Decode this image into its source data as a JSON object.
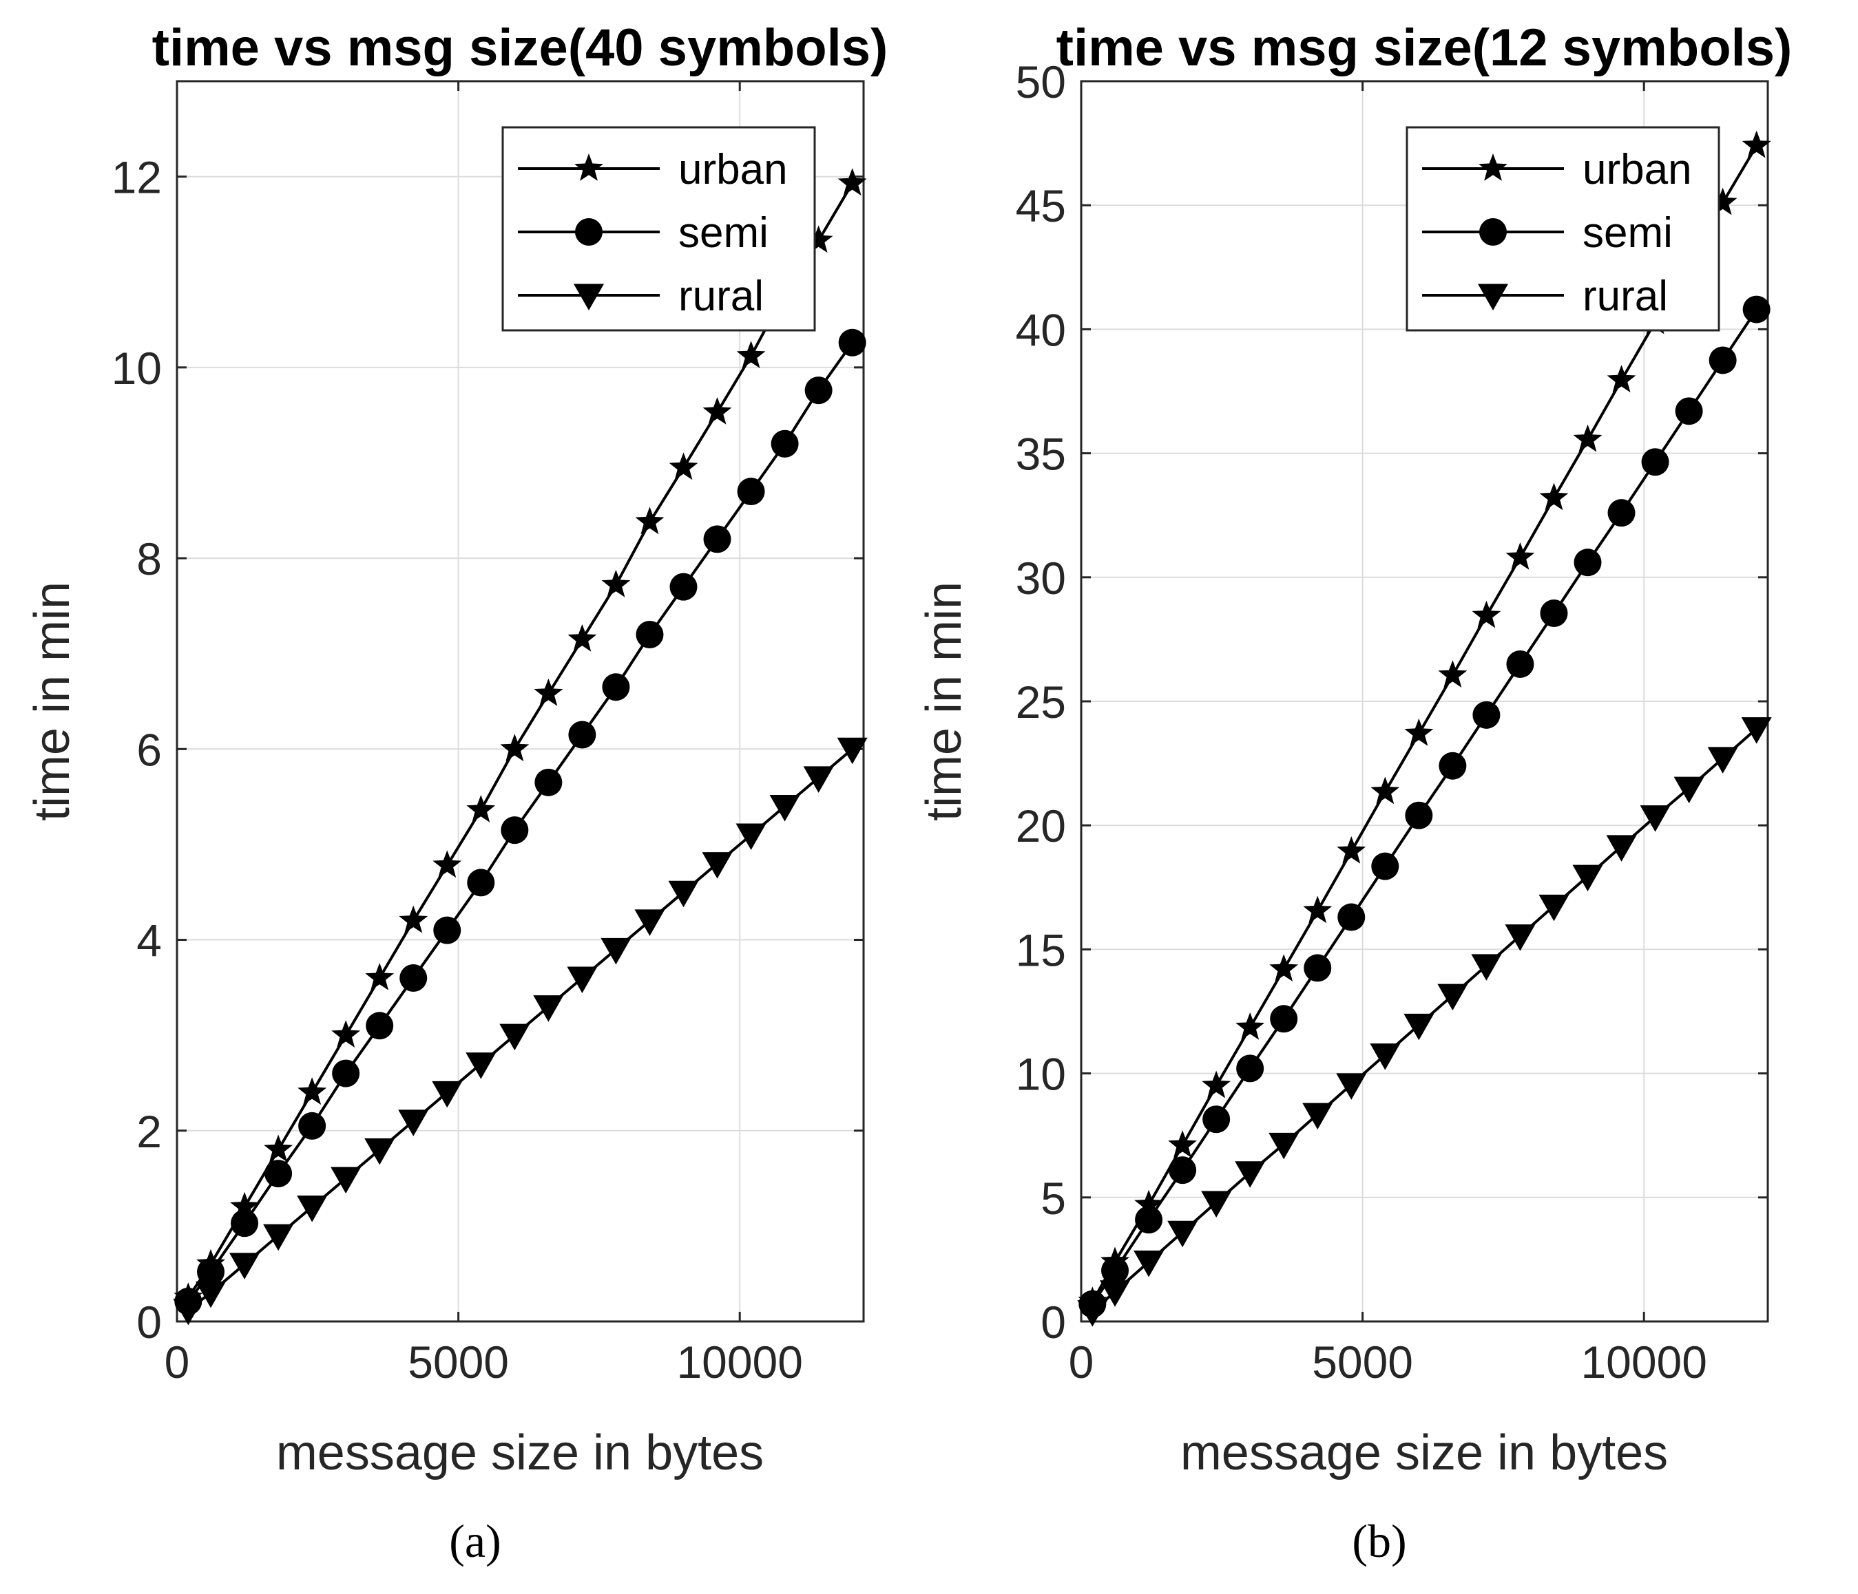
{
  "chart_data": [
    {
      "type": "line",
      "title": "time vs msg size(40 symbols)",
      "xlabel": "message size in bytes",
      "ylabel": "time in min",
      "xlim": [
        0,
        12200
      ],
      "ylim": [
        0,
        13
      ],
      "xticks": [
        0,
        5000,
        10000
      ],
      "yticks": [
        0,
        2,
        4,
        6,
        8,
        10,
        12
      ],
      "grid": true,
      "legend": "top-right",
      "caption": "(a)",
      "x": [
        200,
        600,
        1200,
        1800,
        2400,
        3000,
        3600,
        4200,
        4800,
        5400,
        6000,
        6600,
        7200,
        7800,
        8400,
        9000,
        9600,
        10200,
        10800,
        11400,
        12000
      ],
      "series": [
        {
          "name": "urban",
          "marker": "star",
          "values": [
            0.25,
            0.6,
            1.2,
            1.8,
            2.4,
            3.0,
            3.6,
            4.2,
            4.78,
            5.36,
            6.0,
            6.58,
            7.15,
            7.72,
            8.38,
            8.95,
            9.53,
            10.12,
            10.78,
            11.33,
            11.93
          ]
        },
        {
          "name": "semi",
          "marker": "circle",
          "values": [
            0.21,
            0.52,
            1.03,
            1.55,
            2.05,
            2.6,
            3.1,
            3.6,
            4.1,
            4.6,
            5.15,
            5.65,
            6.15,
            6.65,
            7.2,
            7.7,
            8.2,
            8.7,
            9.2,
            9.76,
            10.26
          ]
        },
        {
          "name": "rural",
          "marker": "triangle",
          "values": [
            0.12,
            0.3,
            0.6,
            0.9,
            1.2,
            1.5,
            1.8,
            2.1,
            2.4,
            2.7,
            3.0,
            3.3,
            3.6,
            3.9,
            4.2,
            4.5,
            4.8,
            5.1,
            5.4,
            5.7,
            6.0
          ]
        }
      ]
    },
    {
      "type": "line",
      "title": "time vs msg size(12 symbols)",
      "xlabel": "message size in bytes",
      "ylabel": "time in min",
      "xlim": [
        0,
        12200
      ],
      "ylim": [
        0,
        50
      ],
      "xticks": [
        0,
        5000,
        10000
      ],
      "yticks": [
        0,
        5,
        10,
        15,
        20,
        25,
        30,
        35,
        40,
        45,
        50
      ],
      "grid": true,
      "legend": "top-right",
      "caption": "(b)",
      "x": [
        200,
        600,
        1200,
        1800,
        2400,
        3000,
        3600,
        4200,
        4800,
        5400,
        6000,
        6600,
        7200,
        7800,
        8400,
        9000,
        9600,
        10200,
        10800,
        11400,
        12000
      ],
      "series": [
        {
          "name": "urban",
          "marker": "star",
          "values": [
            0.8,
            2.4,
            4.7,
            7.1,
            9.5,
            11.85,
            14.2,
            16.55,
            18.95,
            21.35,
            23.7,
            26.05,
            28.45,
            30.8,
            33.2,
            35.55,
            37.95,
            40.3,
            42.7,
            45.1,
            47.4
          ]
        },
        {
          "name": "semi",
          "marker": "circle",
          "values": [
            0.7,
            2.05,
            4.1,
            6.1,
            8.15,
            10.2,
            12.2,
            14.25,
            16.3,
            18.35,
            20.4,
            22.4,
            24.45,
            26.5,
            28.55,
            30.6,
            32.6,
            34.65,
            36.7,
            38.75,
            40.8
          ]
        },
        {
          "name": "rural",
          "marker": "triangle",
          "values": [
            0.4,
            1.2,
            2.4,
            3.6,
            4.8,
            6.0,
            7.15,
            8.35,
            9.55,
            10.75,
            11.95,
            13.15,
            14.35,
            15.55,
            16.75,
            17.95,
            19.15,
            20.35,
            21.5,
            22.7,
            23.9
          ]
        }
      ]
    }
  ]
}
